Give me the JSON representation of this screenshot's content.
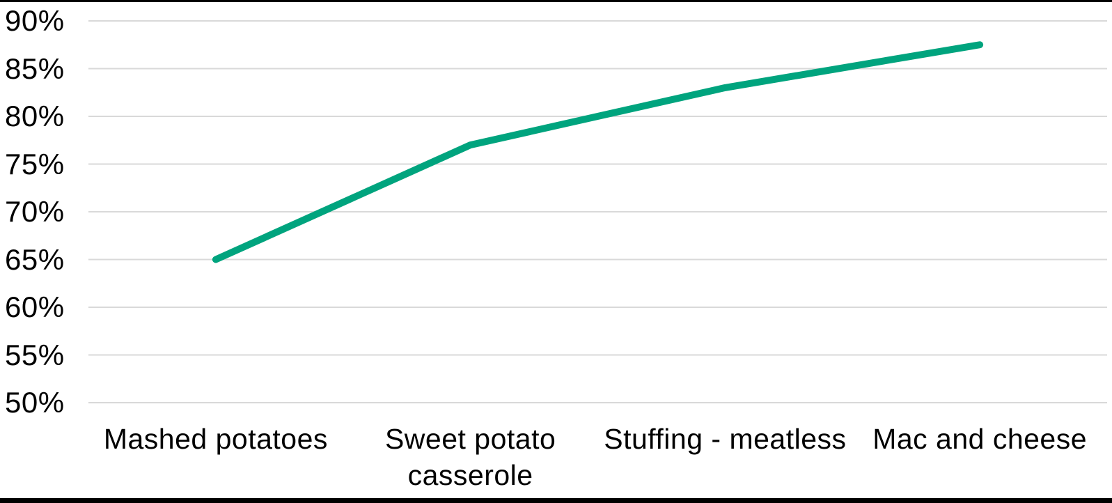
{
  "chart_data": {
    "type": "line",
    "title": "",
    "xlabel": "",
    "ylabel": "",
    "categories": [
      "Mashed potatoes",
      "Sweet potato casserole",
      "Stuffing - meatless",
      "Mac and cheese"
    ],
    "values": [
      65,
      77,
      83,
      87.5
    ],
    "ylim": [
      50,
      90
    ],
    "ytick_step": 5,
    "ytick_labels": [
      "50%",
      "55%",
      "60%",
      "65%",
      "70%",
      "75%",
      "80%",
      "85%",
      "90%"
    ],
    "grid": true,
    "legend_position": "none",
    "line_color": "#00a47e",
    "gridline_color": "#d9d9d9",
    "text_color": "#000000",
    "background_color": "#ffffff",
    "border_bar_color": "#000000"
  }
}
